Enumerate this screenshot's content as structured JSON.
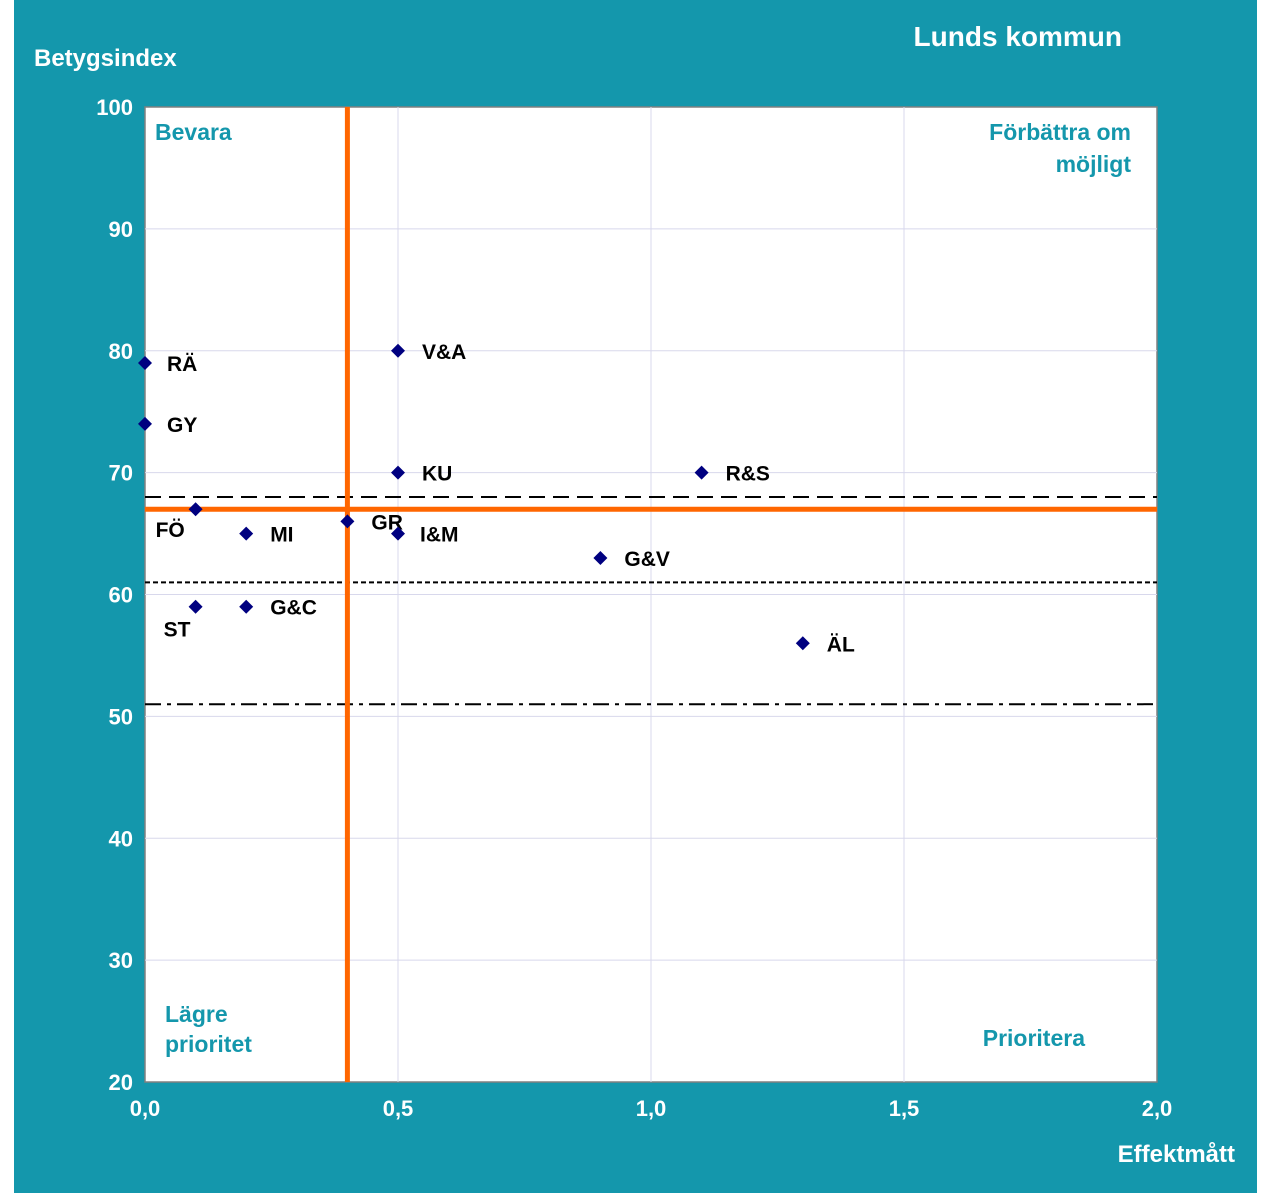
{
  "chart_data": {
    "type": "scatter",
    "title": "Lunds kommun",
    "xlabel": "Effektmått",
    "ylabel": "Betygsindex",
    "xlim": [
      0,
      2
    ],
    "ylim": [
      20,
      100
    ],
    "x_ticks": [
      "0,0",
      "0,5",
      "1,0",
      "1,5",
      "2,0"
    ],
    "y_ticks": [
      "20",
      "30",
      "40",
      "50",
      "60",
      "70",
      "80",
      "90",
      "100"
    ],
    "grid": true,
    "points": [
      {
        "label": "RÄ",
        "x": 0.0,
        "y": 79
      },
      {
        "label": "GY",
        "x": 0.0,
        "y": 74
      },
      {
        "label": "V&A",
        "x": 0.5,
        "y": 80
      },
      {
        "label": "KU",
        "x": 0.5,
        "y": 70
      },
      {
        "label": "R&S",
        "x": 1.1,
        "y": 70
      },
      {
        "label": "FÖ",
        "x": 0.1,
        "y": 67
      },
      {
        "label": "GR",
        "x": 0.4,
        "y": 66
      },
      {
        "label": "MI",
        "x": 0.2,
        "y": 65
      },
      {
        "label": "I&M",
        "x": 0.5,
        "y": 65
      },
      {
        "label": "G&V",
        "x": 0.9,
        "y": 63
      },
      {
        "label": "ST",
        "x": 0.1,
        "y": 59
      },
      {
        "label": "G&C",
        "x": 0.2,
        "y": 59
      },
      {
        "label": "ÄL",
        "x": 1.3,
        "y": 56
      }
    ],
    "reference_lines": {
      "vertical_x": 0.4,
      "horizontal_y": 67,
      "dashed_y": 68,
      "dotted_y": 61,
      "dashdot_y": 51
    },
    "quadrant_labels": {
      "top_left": "Bevara",
      "top_right": [
        "Förbättra om",
        "möjligt"
      ],
      "bottom_left": [
        "Lägre",
        "prioritet"
      ],
      "bottom_right": "Prioritera"
    },
    "colors": {
      "background": "#1497ac",
      "plot_area": "#ffffff",
      "marker": "#000080",
      "reference_line": "#ff6600",
      "quadrant_text": "#1497ac",
      "grid": "#d8d8ec"
    }
  }
}
